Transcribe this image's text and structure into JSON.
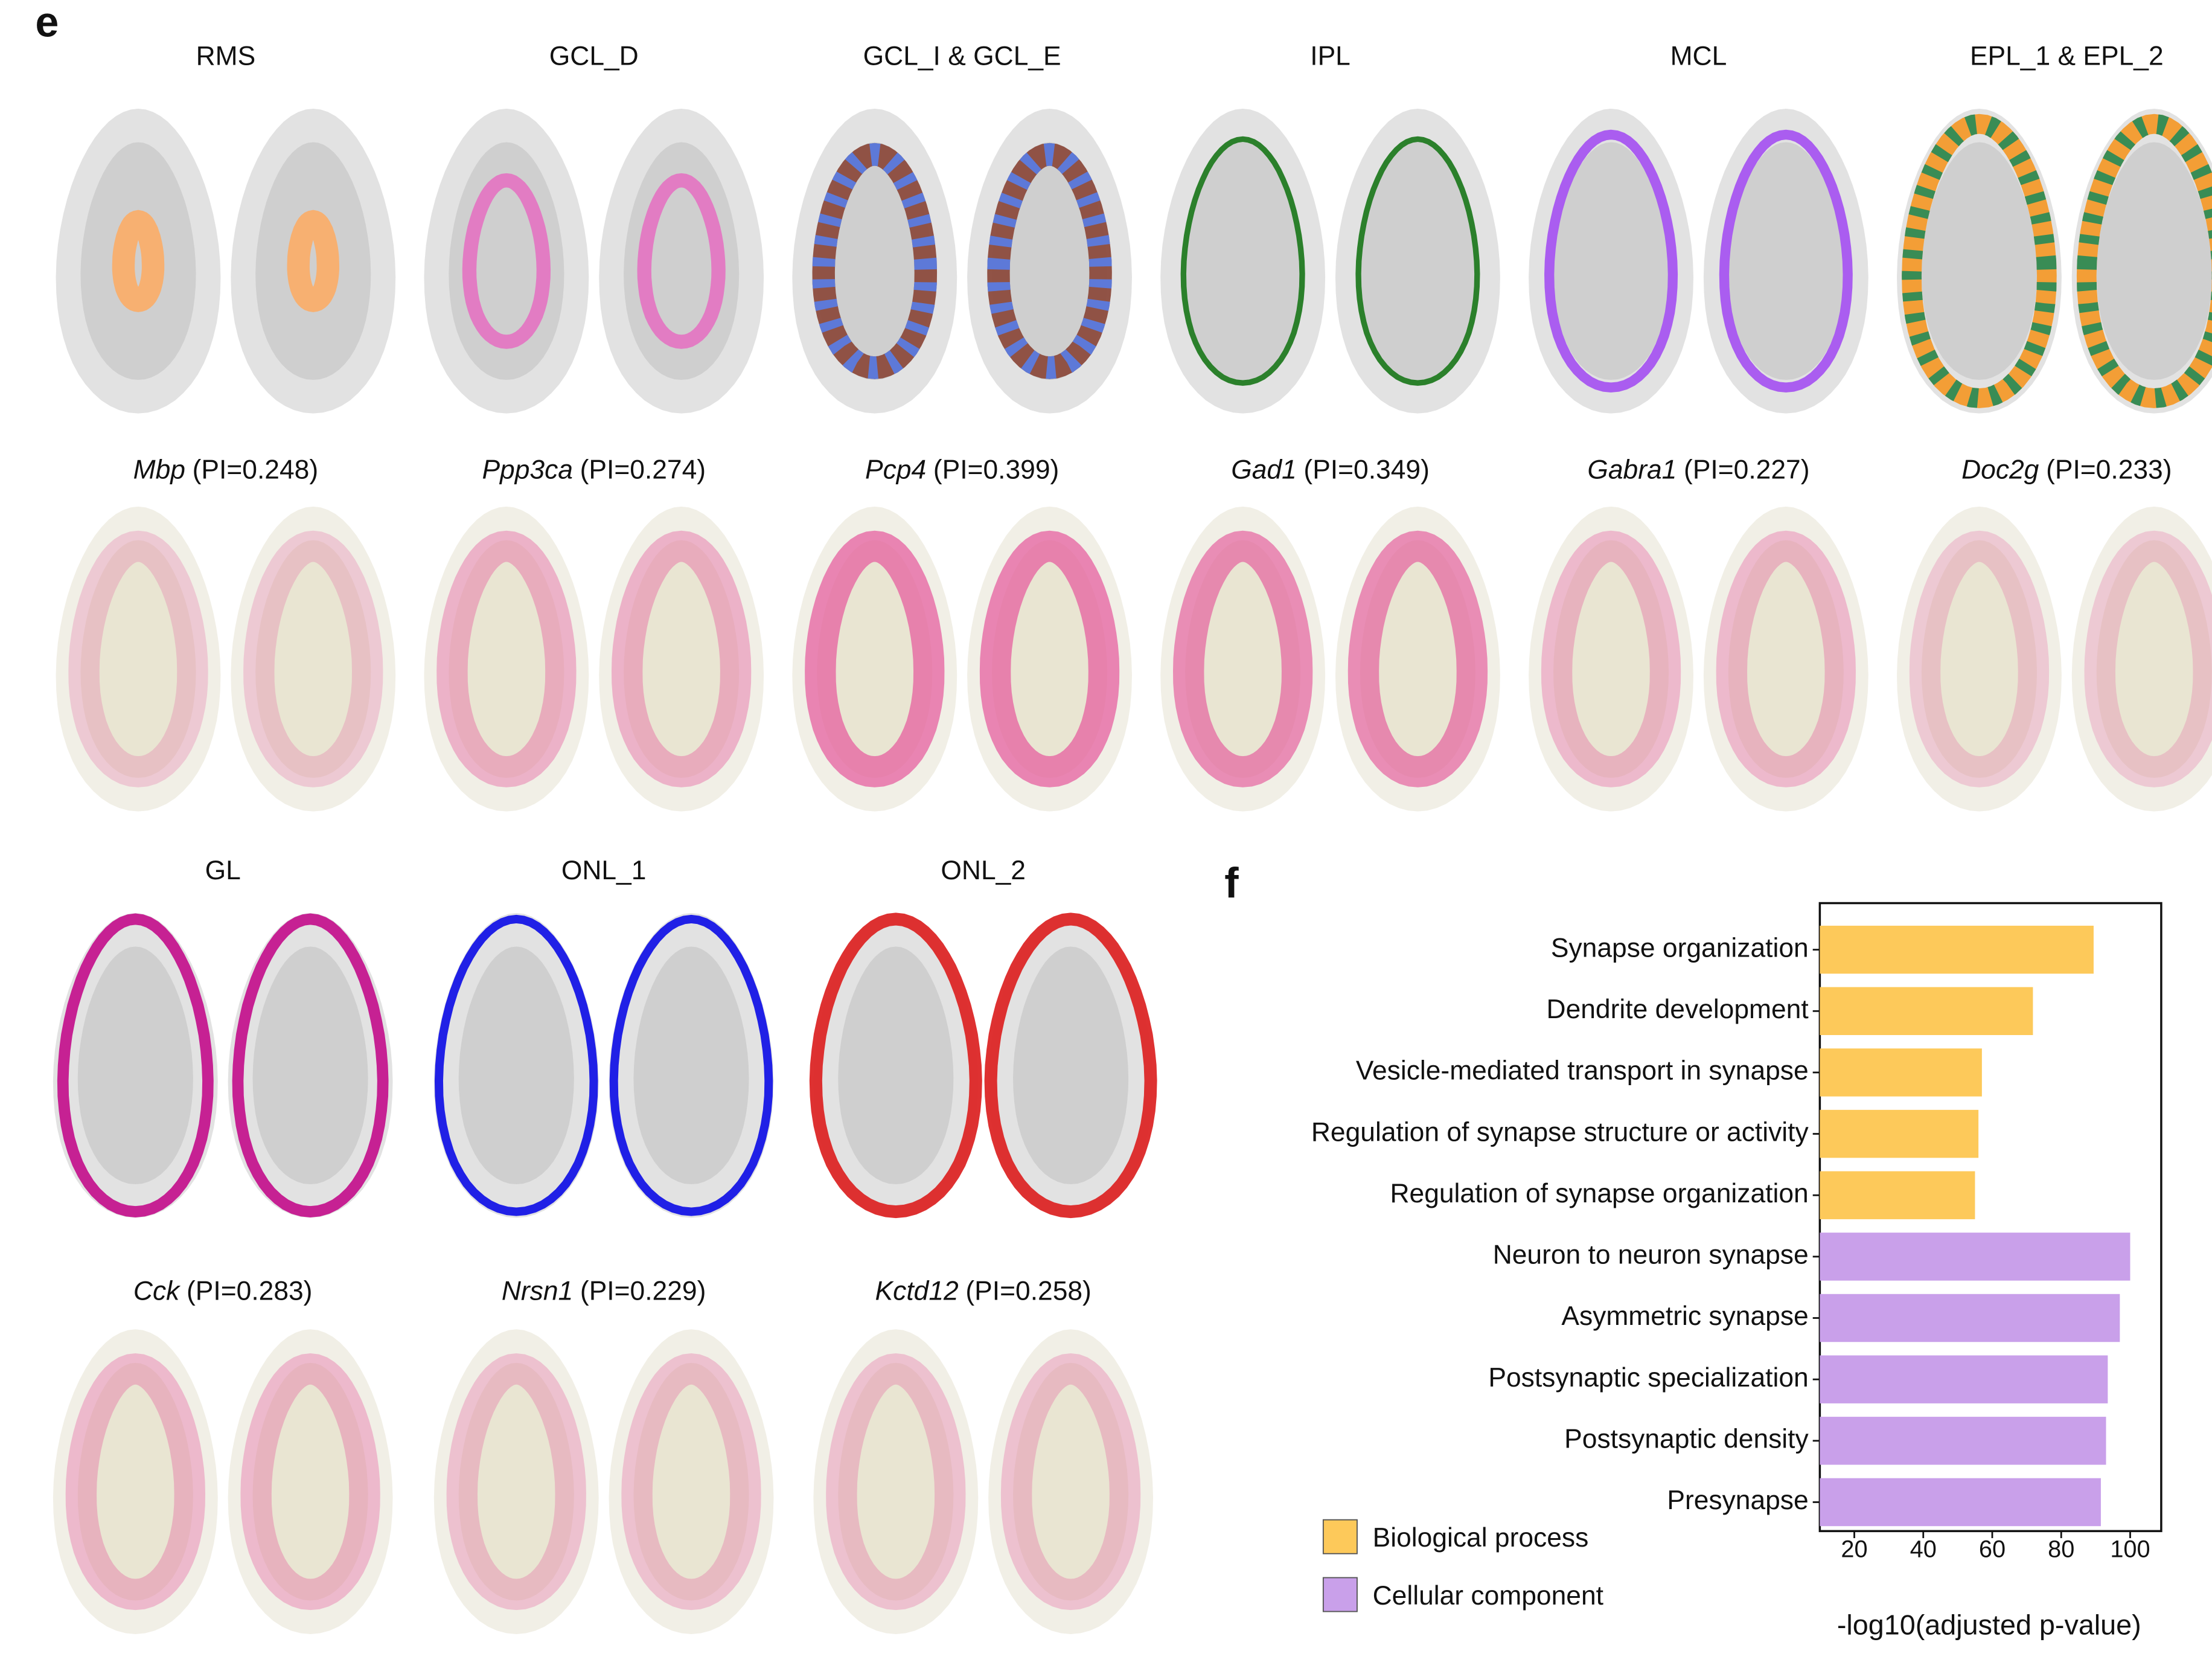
{
  "panel_labels": [
    "e",
    "f"
  ],
  "spatial": {
    "clusters": [
      {
        "title": "RMS",
        "colors": [
          "#f9ae6b"
        ]
      },
      {
        "title": "GCL_D",
        "colors": [
          "#e377c2"
        ]
      },
      {
        "title": "GCL_I & GCL_E",
        "colors": [
          "#8c4b3d",
          "#5b7be0"
        ]
      },
      {
        "title": "IPL",
        "colors": [
          "#217a21"
        ]
      },
      {
        "title": "MCL",
        "colors": [
          "#a655f0"
        ]
      },
      {
        "title": "EPL_1 & EPL_2",
        "colors": [
          "#f39a2c",
          "#2e8b57"
        ]
      },
      {
        "title": "GL",
        "colors": [
          "#c4168e"
        ]
      },
      {
        "title": "ONL_1",
        "colors": [
          "#1515e6"
        ]
      },
      {
        "title": "ONL_2",
        "colors": [
          "#dc2626"
        ]
      }
    ],
    "genes": [
      {
        "gene": "Mbp",
        "label": "(PI=0.248)"
      },
      {
        "gene": "Ppp3ca",
        "label": "(PI=0.274)"
      },
      {
        "gene": "Pcp4",
        "label": "(PI=0.399)"
      },
      {
        "gene": "Gad1",
        "label": "(PI=0.349)"
      },
      {
        "gene": "Gabra1",
        "label": "(PI=0.227)"
      },
      {
        "gene": "Doc2g",
        "label": "(PI=0.233)"
      },
      {
        "gene": "Cck",
        "label": "(PI=0.283)"
      },
      {
        "gene": "Nrsn1",
        "label": "(PI=0.229)"
      },
      {
        "gene": "Kctd12",
        "label": "(PI=0.258)"
      }
    ]
  },
  "chart_data": {
    "type": "barh",
    "categories": [
      "Synapse organization",
      "Dendrite development",
      "Vesicle-mediated transport in synapse",
      "Regulation of synapse structure or activity",
      "Regulation of synapse organization",
      "Neuron to neuron synapse",
      "Asymmetric synapse",
      "Postsynaptic specialization",
      "Postsynaptic density",
      "Presynapse"
    ],
    "series": [
      {
        "name": "Biological process",
        "color": "#fdc95a",
        "values": [
          89.4,
          71.8,
          57,
          56,
          55,
          null,
          null,
          null,
          null,
          null
        ]
      },
      {
        "name": "Cellular component",
        "color": "#c9a0ea",
        "values": [
          null,
          null,
          null,
          null,
          null,
          100,
          97,
          93.5,
          93,
          91.5
        ]
      }
    ],
    "xlabel": "-log10(adjusted p-value)",
    "xlim": [
      10,
      109
    ],
    "xticks": [
      20,
      40,
      60,
      80,
      100
    ],
    "legend": "lower-left-outside"
  }
}
